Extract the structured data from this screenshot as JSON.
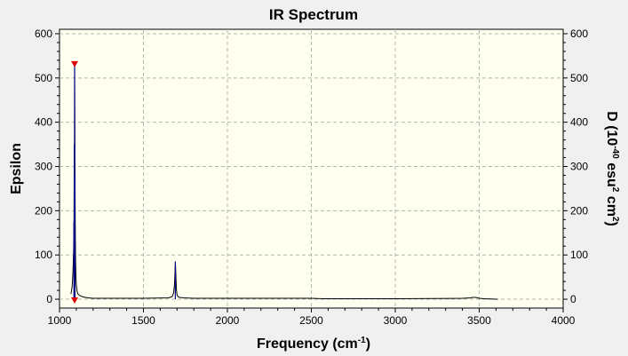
{
  "chart_data": {
    "type": "line",
    "title": "IR Spectrum",
    "xlabel": {
      "main": "Frequency (cm",
      "sup": "-1",
      "end": ")"
    },
    "ylabel": "Epsilon",
    "y2label": {
      "p1": "D (10",
      "sup1": "-40",
      "p2": " esu",
      "sup2": "2",
      "p3": " cm",
      "sup3": "2",
      "p4": ")"
    },
    "xlim": [
      1000,
      4000
    ],
    "ylim": [
      -20,
      610
    ],
    "xticks": [
      1000,
      1500,
      2000,
      2500,
      3000,
      3500,
      4000
    ],
    "yticks": [
      0,
      100,
      200,
      300,
      400,
      500,
      600
    ],
    "y2ticks": [
      0,
      100,
      200,
      300,
      400,
      500,
      600
    ],
    "grid": true,
    "legend": "none",
    "colors": {
      "plot_bg": "#fffff0",
      "spectrum": "#000000",
      "sticks": "#00008b",
      "marker": "#e00000",
      "grid": "#b4b4b4"
    },
    "series": [
      {
        "values_type": "spectrum",
        "x": [
          1068,
          1075,
          1080,
          1084,
          1086,
          1088,
          1089,
          1090,
          1091,
          1092,
          1094,
          1096,
          1098,
          1100,
          1105,
          1110,
          1120,
          1140,
          1170,
          1200,
          1300,
          1500,
          1650,
          1672,
          1680,
          1685,
          1688,
          1690,
          1692,
          1694,
          1697,
          1700,
          1705,
          1715,
          1740,
          1800,
          2000,
          2500,
          2570,
          2575,
          3000,
          3400,
          3450,
          3460,
          3470,
          3480,
          3490,
          3500,
          3530,
          3600,
          3610
        ],
        "y": [
          12,
          28,
          60,
          110,
          175,
          350,
          290,
          530,
          420,
          280,
          150,
          85,
          50,
          32,
          18,
          12,
          8,
          5,
          3,
          2,
          2,
          2,
          3,
          6,
          15,
          35,
          60,
          85,
          65,
          40,
          20,
          10,
          6,
          4,
          3,
          2,
          2,
          2,
          1,
          1,
          1,
          2,
          3,
          4,
          4,
          4,
          3,
          2,
          1,
          0,
          0
        ]
      },
      {
        "values_type": "sticks",
        "x": [
          1086,
          1088,
          1090,
          1092,
          1690
        ],
        "y": [
          175,
          350,
          530,
          280,
          85
        ]
      }
    ],
    "markers": [
      {
        "x": 1090,
        "y": 532,
        "shape": "triangle-down"
      },
      {
        "x": 1090,
        "y": -2,
        "shape": "triangle-down"
      }
    ]
  }
}
